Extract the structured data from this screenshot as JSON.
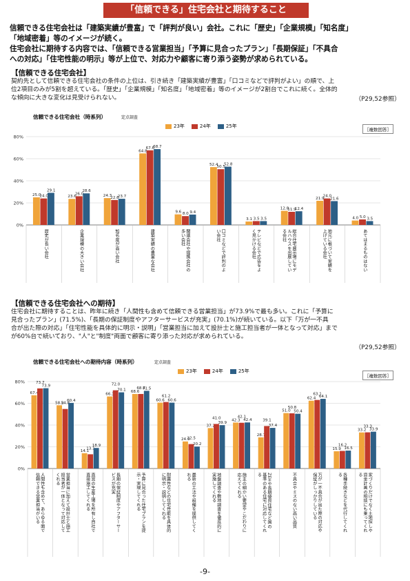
{
  "banner": "「信頼できる」住宅会社と期待すること",
  "summary_lines": [
    "信頼できる住宅会社は「建築実績が豊富」で「評判が良い」会社。これに「歴史」「企業規模」「知名度」",
    "「地域密着」等のイメージが続く。",
    "住宅会社に期待する内容では、「信頼できる営業担当」「予算に見合ったプラン」「長期保証」「不具合",
    "への対応」「住宅性能の明示」等が上位で、対応力や顧客に寄り添う姿勢が求められている。"
  ],
  "section1": {
    "heading": "【信頼できる住宅会社】",
    "body_lines": [
      "契約先として信頼できる住宅会社の条件の上位は、引き続き「建築実績が豊富」「口コミなどで評判がよい」の順で、上",
      "位2項目のみが5割を超えている。「歴史」「企業規模」「知名度」「地域密着」等のイメージが2割台でこれに続く。全体的",
      "な傾向に大きな変化は見受けられない。"
    ],
    "ref": "（P29,52参照）"
  },
  "section2": {
    "heading": "【信頼できる住宅会社への期待】",
    "body_lines": [
      "住宅会社に期待することは、昨年に続き「人間性も含めて信頼できる営業担当」が73.9%で最も多い。これに「予算に",
      "見合ったプラン」(71.5%)、「長期の保証制度やアフターサービスが充実」(70.1%)が続いている。以下「万が一不具",
      "合が出た際の対応」「住宅性能を具体的に明示・説明」「営業担当に加えて設計士と施工担当者が一体となって対応」まで",
      "が60%台で続いており、\"人\"と\"制度\"両面で顧客に寄り添った対応が求められている。"
    ],
    "ref": "（P29,52参照）"
  },
  "colors": {
    "y23": "#f0a43a",
    "y24": "#c0392b",
    "y25": "#2d5f86",
    "banner": "#c0392b"
  },
  "page_number": "-9-",
  "chart_data": [
    {
      "type": "bar",
      "title": "信頼できる住宅会社（時系列）",
      "subtitle": "定点調査",
      "note": "［複数回答］",
      "ylim": [
        0,
        80
      ],
      "yticks": [
        "0%",
        "20%",
        "40%",
        "60%",
        "80%"
      ],
      "categories": [
        "歴史が長い会社",
        "企業規模の大きい会社",
        "知名度が高い会社",
        "建築実績の豊富な会社",
        "関連会社や提携会社の多い会社",
        "口コミなどで評判のよい会社",
        "テレビなどで広告をよく見かける会社",
        "総合住宅展示場にモデルハウスを出展している会社",
        "地元に根づいて実績を上げている会社",
        "あてはまるものはない"
      ],
      "series": [
        {
          "name": "23年",
          "values": [
            25.0,
            23.6,
            24.3,
            64.8,
            9.6,
            52.4,
            3.1,
            12.8,
            21.9,
            4.0
          ]
        },
        {
          "name": "24年",
          "values": [
            24.0,
            26.0,
            22.6,
            67.6,
            8.0,
            50.5,
            3.5,
            11.9,
            24.0,
            5.0
          ]
        },
        {
          "name": "25年",
          "values": [
            29.1,
            28.6,
            23.7,
            68.7,
            9.4,
            52.8,
            3.5,
            12.4,
            21.6,
            3.5
          ]
        }
      ]
    },
    {
      "type": "bar",
      "title": "信頼できる住宅会社への期待内容（時系列）",
      "subtitle": "定点調査",
      "note": "［複数回答］",
      "ylim": [
        0,
        80
      ],
      "yticks": [
        "0%",
        "20%",
        "40%",
        "60%",
        "80%"
      ],
      "categories": [
        "人間性も含めて、あらゆる面で信頼できる営業担当がいる",
        "営業担当に加えて設計士と施工担当者が一体となって対応してくれる",
        "直営の生産工場を所有し自社で直接施工してくれる",
        "長期の保証制度やアフターサービスが充実",
        "予算に見合った住宅プランを提示・実現してくれる",
        "耐震性などの住宅性能を具体的に明示・説明してくれる",
        "最新の工法や設備を提供してくれる",
        "地盤調査や敷地調査を徹底的に実施してくれる",
        "施主の細かい要望やこだわりに応えてくれる",
        "ZEHや長期優良住宅など国の基準のある住宅に対応してくれる",
        "不具合やミスのない高い品質",
        "万が一不具合が出た際の対応や保証がしっかりしている",
        "各種手続きなどを代行してくれる",
        "家づくりだけでなく土地探しや資金計画の相談にも乗ってくれる"
      ],
      "series": [
        {
          "name": "23年",
          "values": [
            67.4,
            58.2,
            14.1,
            66.3,
            68.6,
            60.6,
            24.9,
            37.2,
            42.3,
            28.7,
            51.0,
            62.4,
            15.9,
            33.2
          ]
        },
        {
          "name": "24年",
          "values": [
            73.7,
            54.8,
            13.1,
            72.0,
            68.6,
            61.2,
            22.5,
            41.0,
            42.1,
            39.1,
            50.8,
            63.1,
            16.2,
            33.3
          ]
        },
        {
          "name": "25年",
          "values": [
            73.9,
            60.4,
            18.9,
            70.1,
            71.5,
            60.6,
            20.2,
            39.9,
            42.4,
            37.4,
            50.4,
            64.1,
            16.5,
            33.9
          ]
        }
      ]
    }
  ]
}
